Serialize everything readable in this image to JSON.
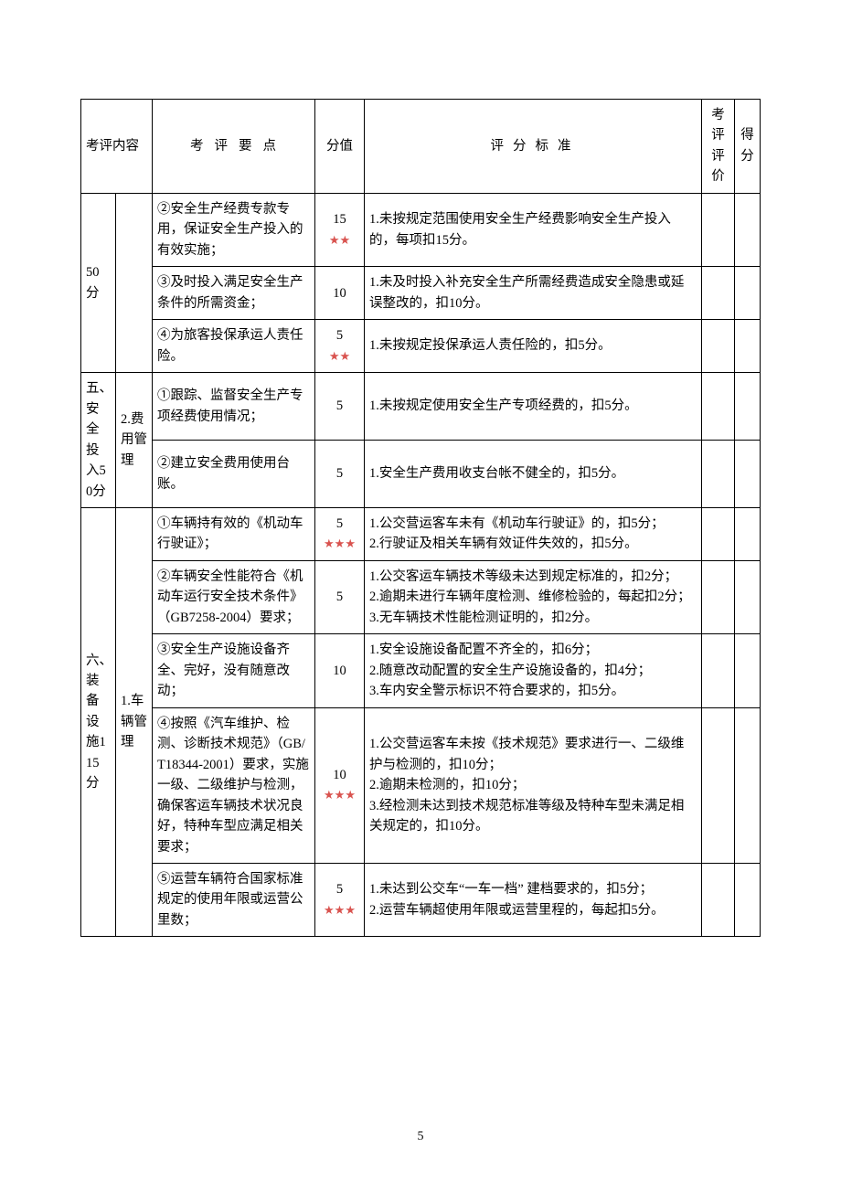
{
  "page_number": "5",
  "header": {
    "col1": "考评内容",
    "col3": "考评要点",
    "col4": "分值",
    "col5": "评分标准",
    "col6": "考评评价",
    "col7": "得分"
  },
  "groupA": {
    "label": "50分",
    "rows": [
      {
        "item": "②安全生产经费专款专用，保证安全生产投入的有效实施；",
        "score": "15",
        "stars": "★★",
        "criteria": "1.未按规定范围使用安全生产经费影响安全生产投入的，每项扣15分。"
      },
      {
        "item": "③及时投入满足安全生产条件的所需资金；",
        "score": "10",
        "stars": "",
        "criteria": "1.未及时投入补充安全生产所需经费造成安全隐患或延误整改的，扣10分。"
      },
      {
        "item": "④为旅客投保承运人责任险。",
        "score": "5",
        "stars": "★★",
        "criteria": "1.未按规定投保承运人责任险的，扣5分。"
      }
    ]
  },
  "groupB": {
    "label": "五、安全投入50分",
    "sub": "2.费用管理",
    "rows": [
      {
        "item": "①跟踪、监督安全生产专项经费使用情况；",
        "score": "5",
        "stars": "",
        "criteria": "1.未按规定使用安全生产专项经费的，扣5分。"
      },
      {
        "item": "②建立安全费用使用台账。",
        "score": "5",
        "stars": "",
        "criteria": "1.安全生产费用收支台帐不健全的，扣5分。"
      }
    ]
  },
  "groupC": {
    "label": "六、装备设施115分",
    "sub": "1.车辆管理",
    "rows": [
      {
        "item": "①车辆持有效的《机动车行驶证》；",
        "score": "5",
        "stars": "★★★",
        "criteria": "1.公交营运客车未有《机动车行驶证》的，扣5分；\n2.行驶证及相关车辆有效证件失效的，扣5分。"
      },
      {
        "item": "②车辆安全性能符合《机动车运行安全技术条件》（GB7258-2004）要求；",
        "score": "5",
        "stars": "",
        "criteria": "1.公交客运车辆技术等级未达到规定标准的，扣2分；\n2.逾期未进行车辆年度检测、维修检验的，每起扣2分；\n3.无车辆技术性能检测证明的，扣2分。"
      },
      {
        "item": "③安全生产设施设备齐全、完好，没有随意改动；",
        "score": "10",
        "stars": "",
        "criteria": "1.安全设施设备配置不齐全的，扣6分；\n2.随意改动配置的安全生产设施设备的，扣4分；\n3.车内安全警示标识不符合要求的，扣5分。"
      },
      {
        "item": "④按照《汽车维护、检测、诊断技术规范》（GB/T18344-2001）要求，实施一级、二级维护与检测，确保客运车辆技术状况良好，特种车型应满足相关要求；",
        "score": "10",
        "stars": "★★★",
        "criteria": "1.公交营运客车未按《技术规范》要求进行一、二级维护与检测的，扣10分；\n2.逾期未检测的，扣10分；\n3.经检测未达到技术规范标准等级及特种车型未满足相关规定的，扣10分。"
      },
      {
        "item": "⑤运营车辆符合国家标准规定的使用年限或运营公里数；",
        "score": "5",
        "stars": "★★★",
        "criteria": "1.未达到公交车“一车一档” 建档要求的，扣5分；\n2.运营车辆超使用年限或运营里程的，每起扣5分。"
      }
    ]
  }
}
